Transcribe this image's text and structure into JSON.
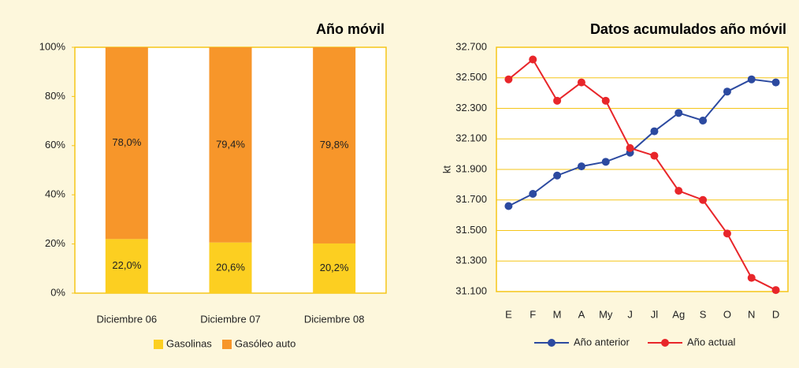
{
  "chart_data": [
    {
      "type": "stacked_bar",
      "title": "Año móvil",
      "categories": [
        "Diciembre 06",
        "Diciembre 07",
        "Diciembre 08"
      ],
      "series": [
        {
          "name": "Gasolinas",
          "color": "#fccf21",
          "values": [
            22.0,
            20.6,
            20.2
          ],
          "value_labels": [
            "22,0%",
            "20,6%",
            "20,2%"
          ]
        },
        {
          "name": "Gasóleo auto",
          "color": "#f7962a",
          "values": [
            78.0,
            79.4,
            79.8
          ],
          "value_labels": [
            "78,0%",
            "79,4%",
            "79,8%"
          ]
        }
      ],
      "ylim": [
        0,
        100
      ],
      "yticks": [
        {
          "value": 0,
          "label": "0%"
        },
        {
          "value": 20,
          "label": "20%"
        },
        {
          "value": 40,
          "label": "40%"
        },
        {
          "value": 60,
          "label": "60%"
        },
        {
          "value": 80,
          "label": "80%"
        },
        {
          "value": 100,
          "label": "100%"
        }
      ],
      "grid": false,
      "legend": "bottom"
    },
    {
      "type": "line",
      "title": "Datos acumulados año móvil",
      "y_label": "kt",
      "categories": [
        "E",
        "F",
        "M",
        "A",
        "My",
        "J",
        "Jl",
        "Ag",
        "S",
        "O",
        "N",
        "D"
      ],
      "series": [
        {
          "name": "Año anterior",
          "color": "#2c4aa0",
          "values": [
            31660,
            31740,
            31860,
            31920,
            31950,
            32010,
            32150,
            32270,
            32220,
            32410,
            32490,
            32470
          ]
        },
        {
          "name": "Año actual",
          "color": "#e8262a",
          "values": [
            32490,
            32620,
            32350,
            32470,
            32350,
            32040,
            31990,
            31760,
            31700,
            31480,
            31190,
            31110
          ]
        }
      ],
      "ylim": [
        31100,
        32700
      ],
      "yticks": [
        {
          "value": 31100,
          "label": "31.100"
        },
        {
          "value": 31300,
          "label": "31.300"
        },
        {
          "value": 31500,
          "label": "31.500"
        },
        {
          "value": 31700,
          "label": "31.700"
        },
        {
          "value": 31900,
          "label": "31.900"
        },
        {
          "value": 32100,
          "label": "32.100"
        },
        {
          "value": 32300,
          "label": "32.300"
        },
        {
          "value": 32500,
          "label": "32.500"
        },
        {
          "value": 32700,
          "label": "32.700"
        }
      ],
      "grid": true,
      "legend": "bottom"
    }
  ]
}
